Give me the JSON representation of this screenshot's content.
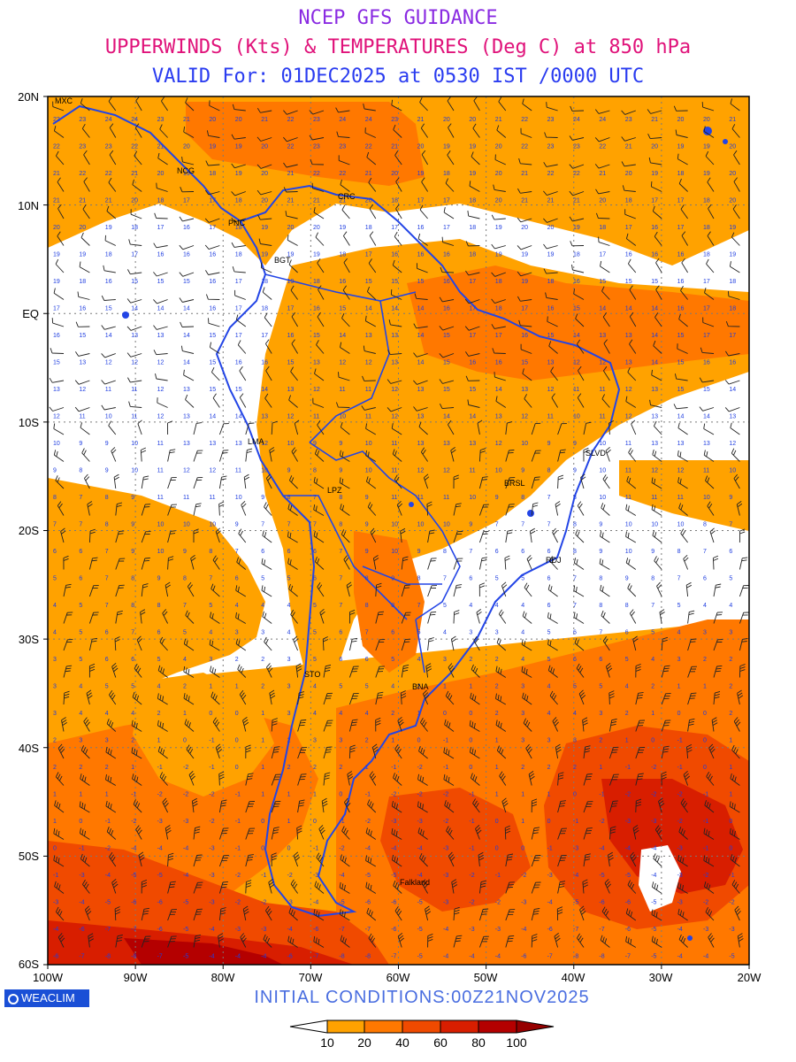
{
  "header": {
    "line1": "NCEP GFS GUIDANCE",
    "line2": "UPPERWINDS (Kts) & TEMPERATURES (Deg C) at 850 hPa",
    "line3": "VALID For: 01DEC2025 at 0530 IST /0000 UTC",
    "color1": "#8a2be2",
    "color2": "#e0127a",
    "color3": "#2a3cf0"
  },
  "map": {
    "lat_labels": [
      "20N",
      "10N",
      "EQ",
      "10S",
      "20S",
      "30S",
      "40S",
      "50S",
      "60S"
    ],
    "lon_labels": [
      "100W",
      "90W",
      "80W",
      "70W",
      "60W",
      "50W",
      "40W",
      "30W",
      "20W"
    ],
    "station_labels": [
      "MXC",
      "NCG",
      "PNC",
      "BGT",
      "CRC",
      "LMA",
      "LPZ",
      "BRSL",
      "SLVD",
      "RDJ",
      "STO",
      "BNA",
      "Falkland"
    ],
    "coastline_color": "#2345e6",
    "grid": "dotted"
  },
  "footer": {
    "logo_text": "WEACLIM",
    "initial_conditions": "INITIAL CONDITIONS:00Z21NOV2025",
    "initial_color": "#4a6ee0"
  },
  "colorbar": {
    "ticks": [
      "10",
      "20",
      "40",
      "60",
      "80",
      "100"
    ],
    "colors": [
      "#ffffff",
      "#ffa200",
      "#ff7800",
      "#f04a00",
      "#d81e00",
      "#b40000",
      "#960000"
    ]
  }
}
